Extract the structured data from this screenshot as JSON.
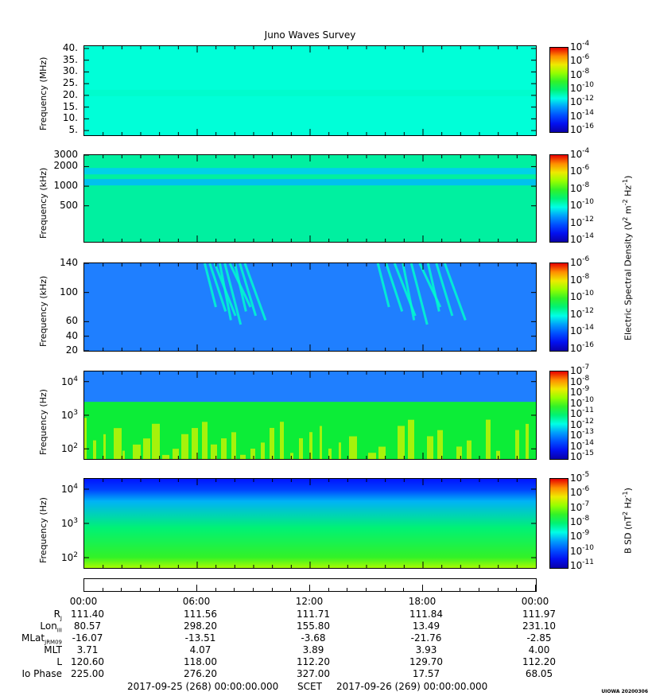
{
  "chart_data": {
    "type": "heatmap",
    "title": "Juno Waves Survey",
    "panels": [
      {
        "ylabel": "Frequency (MHz)",
        "yscale": "linear",
        "ylim": [
          3,
          41
        ],
        "yticks": [
          "40.",
          "35.",
          "30.",
          "25.",
          "20.",
          "15.",
          "10.",
          "5."
        ],
        "colorbar_ticks": [
          "-4",
          "-6",
          "-8",
          "-10",
          "-12",
          "-14",
          "-16"
        ],
        "colorbar_range": [
          -17,
          -4
        ],
        "background": "#00ffd8",
        "features": [
          {
            "kind": "band",
            "y": 21,
            "level": -11.5
          }
        ]
      },
      {
        "ylabel": "Frequency (kHz)",
        "yscale": "log",
        "ylim": [
          140,
          3000
        ],
        "yticks": [
          "3000",
          "2000",
          "1000",
          "500"
        ],
        "colorbar_ticks": [
          "-4",
          "-6",
          "-8",
          "-10",
          "-12",
          "-14"
        ],
        "colorbar_range": [
          -15,
          -3.5
        ],
        "background": "#00f0a0",
        "features": [
          {
            "kind": "band",
            "y": 1700,
            "level": -11
          },
          {
            "kind": "band",
            "y": 1150,
            "level": -11.2
          }
        ]
      },
      {
        "ylabel": "Frequency (kHz)",
        "yscale": "linear",
        "ylim": [
          20,
          140
        ],
        "yticks": [
          "140",
          "100",
          "60",
          "40",
          "20"
        ],
        "colorbar_ticks": [
          "-6",
          "-8",
          "-10",
          "-12",
          "-14",
          "-16"
        ],
        "colorbar_range": [
          -16.5,
          -6
        ],
        "background": "#1f7fff",
        "features": [
          {
            "kind": "streaks",
            "t_start_h": 6.4,
            "t_end_h": 8.8
          },
          {
            "kind": "streaks",
            "t_start_h": 15.6,
            "t_end_h": 19.6
          }
        ]
      },
      {
        "ylabel": "Frequency (Hz)",
        "yscale": "log",
        "ylim": [
          50,
          20000
        ],
        "yticks": [
          "10^4",
          "10^3",
          "10^2"
        ],
        "colorbar_ticks": [
          "-7",
          "-8",
          "-9",
          "-10",
          "-11",
          "-12",
          "-13",
          "-14",
          "-15"
        ],
        "colorbar_range": [
          -15,
          -7
        ],
        "background": "#1f7fff",
        "features": [
          {
            "kind": "band",
            "y": 550,
            "level": -8.5
          },
          {
            "kind": "lowband",
            "y_top": 2500,
            "level": -10.5
          }
        ]
      },
      {
        "ylabel": "Frequency (Hz)",
        "yscale": "log",
        "ylim": [
          50,
          20000
        ],
        "yticks": [
          "10^4",
          "10^3",
          "10^2"
        ],
        "colorbar_ticks": [
          "-5",
          "-6",
          "-7",
          "-8",
          "-9",
          "-10",
          "-11"
        ],
        "colorbar_range": [
          -11,
          -4.5
        ],
        "background": "#0018ff",
        "features": [
          {
            "kind": "gradient_up",
            "level": -8
          }
        ]
      }
    ],
    "colorbar_labels": [
      "Electric Spectral Density (V² m⁻² Hz⁻¹)",
      "B SD (nT² Hz⁻¹)"
    ],
    "colorbar_base": "10",
    "time_axis": {
      "labels": [
        "00:00",
        "06:00",
        "12:00",
        "18:00",
        "00:00"
      ],
      "xlim_hours": [
        0,
        24
      ]
    }
  },
  "ephemeris": {
    "rows": [
      {
        "name": "R",
        "sub": "J",
        "values": [
          "111.40",
          "111.56",
          "111.71",
          "111.84",
          "111.97"
        ]
      },
      {
        "name": "Lon",
        "sub": "III",
        "values": [
          "80.57",
          "298.20",
          "155.80",
          "13.49",
          "231.10"
        ]
      },
      {
        "name": "MLat",
        "sub": "JRM09",
        "values": [
          "-16.07",
          "-13.51",
          "-3.68",
          "-21.76",
          "-2.85"
        ]
      },
      {
        "name": "MLT",
        "sub": "",
        "values": [
          "3.71",
          "4.07",
          "3.89",
          "3.93",
          "4.00"
        ]
      },
      {
        "name": "L",
        "sub": "",
        "values": [
          "120.60",
          "118.00",
          "112.20",
          "129.70",
          "112.20"
        ]
      },
      {
        "name": "Io Phase",
        "sub": "",
        "values": [
          "225.00",
          "276.20",
          "327.00",
          "17.57",
          "68.05"
        ]
      }
    ]
  },
  "footer": {
    "start": "2017-09-25 (268) 00:00:00.000",
    "scet": "SCET",
    "end": "2017-09-26 (269) 00:00:00.000"
  },
  "stamp": "UIOWA 20200306"
}
